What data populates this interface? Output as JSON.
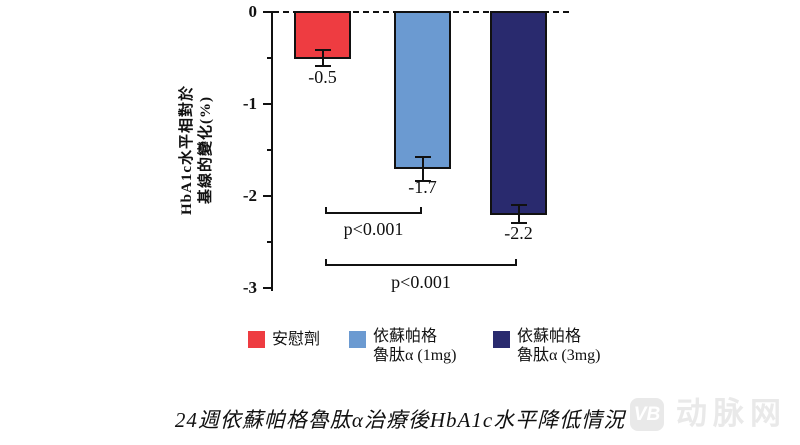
{
  "chart_data": {
    "type": "bar",
    "title": "24週依蘇帕格魯肽α治療後HbA1c水平降低情況",
    "ylabel_lines": [
      "HbA1c水平相對於",
      "基線的變化(%)"
    ],
    "yticks": [
      "0",
      "-1",
      "-2",
      "-3"
    ],
    "ylim": [
      -3,
      0
    ],
    "minor_tick_step": 0.5,
    "grid": false,
    "categories": [
      "安慰劑",
      "依蘇帕格魯肽α (1mg)",
      "依蘇帕格魯肽α (3mg)"
    ],
    "values": [
      -0.5,
      -1.7,
      -2.2
    ],
    "value_labels": [
      "-0.5",
      "-1.7",
      "-2.2"
    ],
    "errors": [
      0.1,
      0.14,
      0.11
    ],
    "bar_colors": [
      "#ee3c41",
      "#6b9ad1",
      "#292a6e"
    ],
    "zero_line_style": "dashed",
    "significance": [
      {
        "label": "p<0.001",
        "between": [
          0,
          1
        ]
      },
      {
        "label": "p<0.001",
        "between": [
          0,
          2
        ]
      }
    ]
  },
  "legend": {
    "position": "bottom",
    "items": [
      {
        "swatch_color": "#ee3c41",
        "lines": [
          "安慰劑"
        ]
      },
      {
        "swatch_color": "#6b9ad1",
        "lines": [
          "依蘇帕格",
          "魯肽α (1mg)"
        ]
      },
      {
        "swatch_color": "#292a6e",
        "lines": [
          "依蘇帕格",
          "魯肽α (3mg)"
        ]
      }
    ]
  },
  "watermark": {
    "logo_text": "VB",
    "brand_text": "动脉网"
  }
}
